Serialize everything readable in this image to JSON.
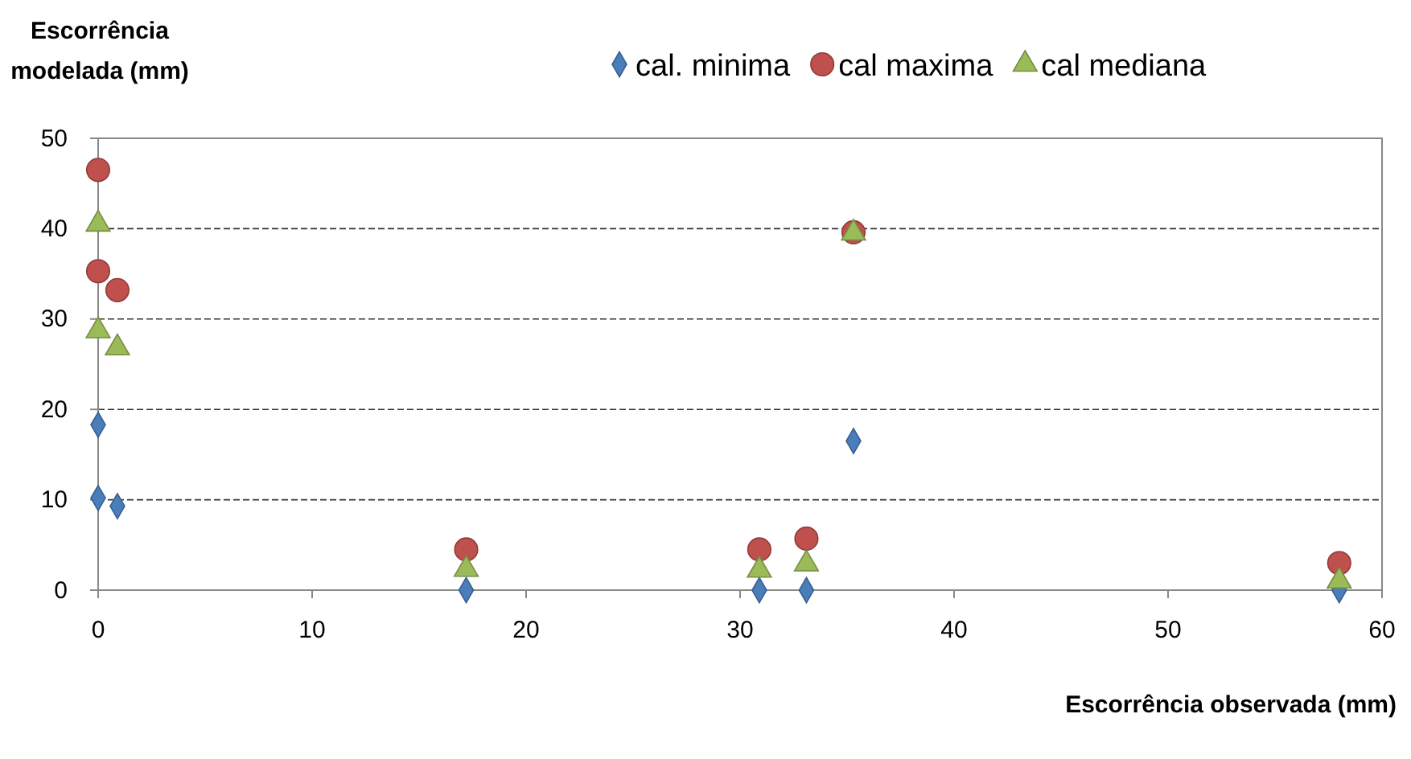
{
  "chart_data": {
    "type": "scatter",
    "xlabel": "Escorrência observada (mm)",
    "ylabel": "Escorrência modelada (mm)",
    "xlim": [
      0,
      60
    ],
    "xticks": [
      0,
      10,
      20,
      30,
      40,
      50,
      60
    ],
    "ylim": [
      0,
      50
    ],
    "yticks": [
      0,
      10,
      20,
      30,
      40,
      50
    ],
    "grid": "y",
    "legend": "top",
    "series": [
      {
        "name": "cal. minima",
        "color": "#4a7ebb",
        "marker": "diamond",
        "x": [
          0,
          0,
          0.9,
          17.2,
          30.9,
          33.1,
          35.3,
          58
        ],
        "values": [
          18.3,
          10.2,
          9.3,
          0,
          0,
          0,
          16.5,
          0
        ]
      },
      {
        "name": "cal maxima",
        "color": "#c0504d",
        "marker": "circle",
        "x": [
          0,
          0,
          0.9,
          17.2,
          30.9,
          33.1,
          35.3,
          58
        ],
        "values": [
          46.5,
          35.3,
          33.2,
          4.5,
          4.5,
          5.7,
          39.6,
          3.0
        ]
      },
      {
        "name": "cal mediana",
        "color": "#9bbb59",
        "marker": "triangle",
        "x": [
          0,
          0,
          0.9,
          17.2,
          30.9,
          33.1,
          35.3,
          58
        ],
        "values": [
          40.5,
          28.7,
          26.8,
          2.3,
          2.2,
          2.9,
          39.5,
          1.0
        ]
      }
    ]
  }
}
